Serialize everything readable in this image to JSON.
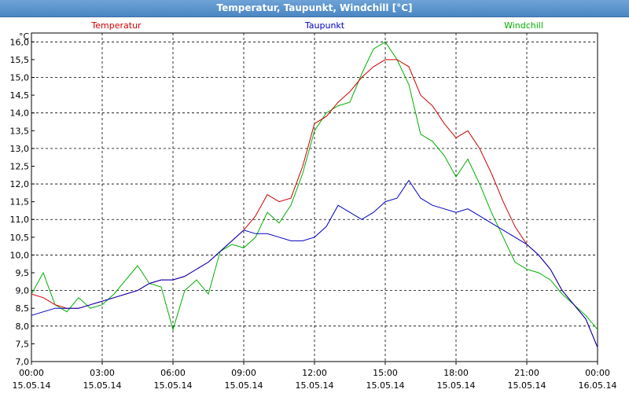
{
  "window": {
    "title": "Temperatur, Taupunkt, Windchill [°C]"
  },
  "chart_data": {
    "type": "line",
    "title": "Temperatur, Taupunkt, Windchill [°C]",
    "ylabel": "°C",
    "ylim": [
      7.0,
      16.25
    ],
    "yticks": [
      "16,0",
      "15,5",
      "15,0",
      "14,5",
      "14,0",
      "13,5",
      "13,0",
      "12,5",
      "12,0",
      "11,5",
      "11,0",
      "10,5",
      "10,0",
      "9,5",
      "9,0",
      "8,5",
      "8,0",
      "7,5",
      "7,0"
    ],
    "xlim": [
      0,
      24
    ],
    "xticks": [
      {
        "time": "00:00",
        "date": "15.05.14"
      },
      {
        "time": "03:00",
        "date": "15.05.14"
      },
      {
        "time": "06:00",
        "date": "15.05.14"
      },
      {
        "time": "09:00",
        "date": "15.05.14"
      },
      {
        "time": "12:00",
        "date": "15.05.14"
      },
      {
        "time": "15:00",
        "date": "15.05.14"
      },
      {
        "time": "18:00",
        "date": "15.05.14"
      },
      {
        "time": "21:00",
        "date": "15.05.14"
      },
      {
        "time": "00:00",
        "date": "16.05.14"
      }
    ],
    "grid": true,
    "legend_position": "top",
    "series": [
      {
        "name": "Temperatur",
        "color": "#d00000",
        "x": [
          0,
          0.5,
          1,
          1.5,
          2,
          2.5,
          3,
          3.5,
          4,
          4.5,
          5,
          5.5,
          6,
          6.5,
          7,
          7.5,
          8,
          8.5,
          9,
          9.5,
          10,
          10.5,
          11,
          11.5,
          12,
          12.5,
          13,
          13.5,
          14,
          14.5,
          15,
          15.5,
          16,
          16.5,
          17,
          17.5,
          18,
          18.5,
          19,
          19.5,
          20,
          20.5,
          21,
          21.5,
          22,
          22.5,
          23,
          23.5,
          24
        ],
        "values": [
          8.9,
          8.8,
          8.6,
          8.5,
          8.5,
          8.6,
          8.7,
          8.8,
          8.9,
          9.0,
          9.2,
          9.3,
          9.3,
          9.4,
          9.6,
          9.8,
          10.1,
          10.4,
          10.7,
          11.1,
          11.7,
          11.5,
          11.6,
          12.5,
          13.7,
          13.9,
          14.3,
          14.6,
          15.0,
          15.3,
          15.5,
          15.5,
          15.3,
          14.5,
          14.2,
          13.7,
          13.3,
          13.5,
          13.0,
          12.3,
          11.5,
          10.8,
          10.3,
          10.0,
          9.6,
          9.0,
          8.6,
          8.2,
          7.4
        ]
      },
      {
        "name": "Taupunkt",
        "color": "#0000c0",
        "x": [
          0,
          0.5,
          1,
          1.5,
          2,
          2.5,
          3,
          3.5,
          4,
          4.5,
          5,
          5.5,
          6,
          6.5,
          7,
          7.5,
          8,
          8.5,
          9,
          9.5,
          10,
          10.5,
          11,
          11.5,
          12,
          12.5,
          13,
          13.5,
          14,
          14.5,
          15,
          15.5,
          16,
          16.5,
          17,
          17.5,
          18,
          18.5,
          19,
          19.5,
          20,
          20.5,
          21,
          21.5,
          22,
          22.5,
          23,
          23.5,
          24
        ],
        "values": [
          8.3,
          8.4,
          8.5,
          8.5,
          8.5,
          8.6,
          8.7,
          8.8,
          8.9,
          9.0,
          9.2,
          9.3,
          9.3,
          9.4,
          9.6,
          9.8,
          10.1,
          10.4,
          10.7,
          10.6,
          10.6,
          10.5,
          10.4,
          10.4,
          10.5,
          10.8,
          11.4,
          11.2,
          11.0,
          11.2,
          11.5,
          11.6,
          12.1,
          11.6,
          11.4,
          11.3,
          11.2,
          11.3,
          11.1,
          10.9,
          10.7,
          10.5,
          10.3,
          10.0,
          9.6,
          9.0,
          8.6,
          8.2,
          7.4
        ]
      },
      {
        "name": "Windchill",
        "color": "#00b000",
        "x": [
          0,
          0.5,
          1,
          1.5,
          2,
          2.5,
          3,
          3.5,
          4,
          4.5,
          5,
          5.5,
          6,
          6.5,
          7,
          7.5,
          8,
          8.5,
          9,
          9.5,
          10,
          10.5,
          11,
          11.5,
          12,
          12.5,
          13,
          13.5,
          14,
          14.5,
          15,
          15.5,
          16,
          16.5,
          17,
          17.5,
          18,
          18.5,
          19,
          19.5,
          20,
          20.5,
          21,
          21.5,
          22,
          22.5,
          23,
          23.5,
          24
        ],
        "values": [
          8.9,
          9.5,
          8.6,
          8.4,
          8.8,
          8.5,
          8.6,
          8.9,
          9.3,
          9.7,
          9.2,
          9.1,
          7.9,
          9.0,
          9.3,
          8.9,
          10.1,
          10.3,
          10.2,
          10.5,
          11.2,
          10.9,
          11.4,
          12.3,
          13.5,
          14.0,
          14.2,
          14.3,
          15.1,
          15.8,
          16.0,
          15.5,
          14.8,
          13.4,
          13.2,
          12.8,
          12.2,
          12.7,
          12.0,
          11.2,
          10.5,
          9.8,
          9.6,
          9.5,
          9.3,
          8.9,
          8.6,
          8.3,
          7.9
        ]
      }
    ]
  }
}
